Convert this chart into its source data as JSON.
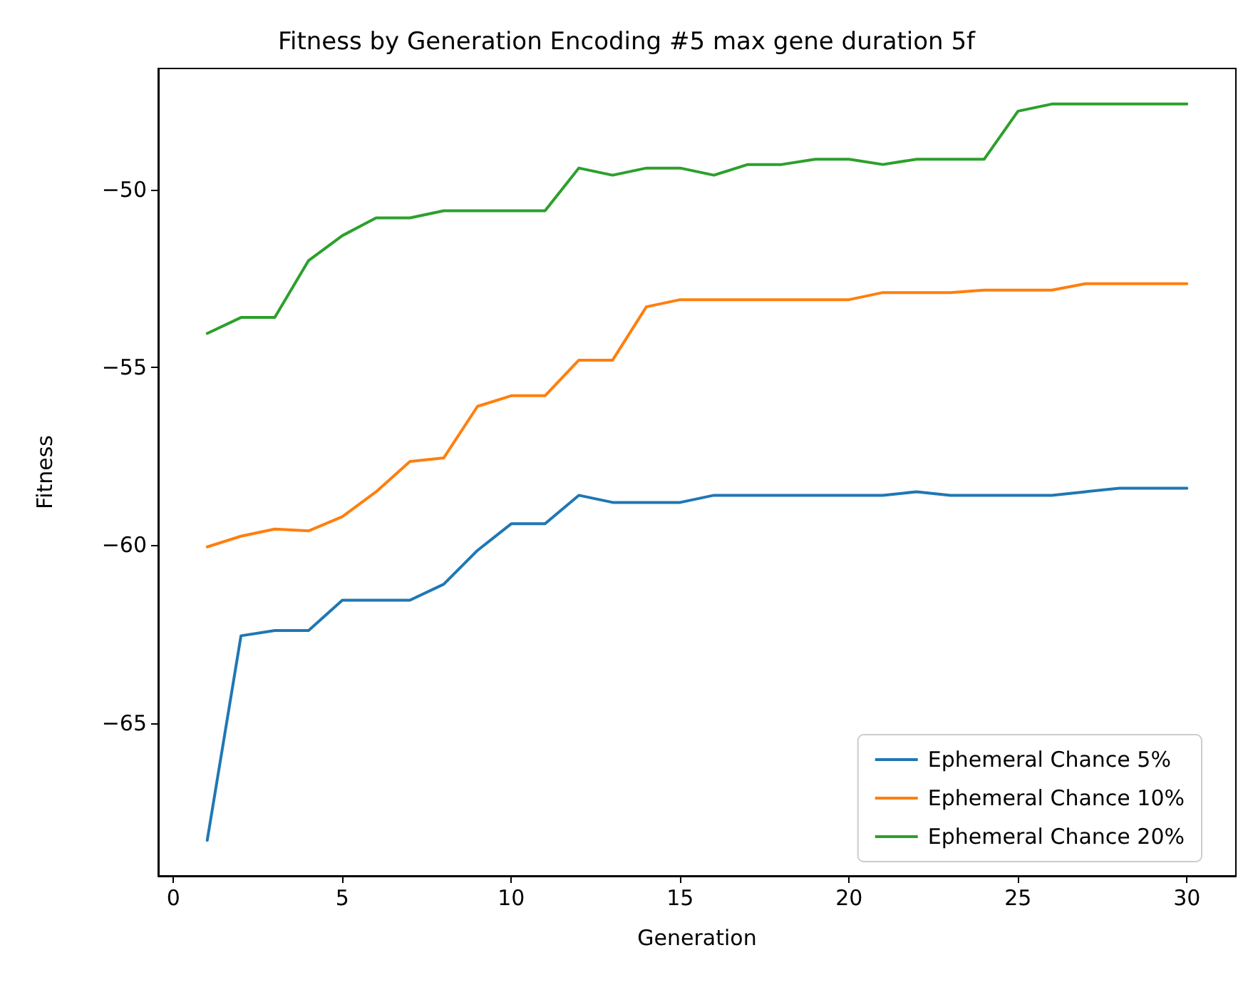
{
  "chart_data": {
    "type": "line",
    "title": "Fitness by Generation Encoding #5 max gene duration 5f",
    "xlabel": "Generation",
    "ylabel": "Fitness",
    "x": [
      1,
      2,
      3,
      4,
      5,
      6,
      7,
      8,
      9,
      10,
      11,
      12,
      13,
      14,
      15,
      16,
      17,
      18,
      19,
      20,
      21,
      22,
      23,
      24,
      25,
      26,
      27,
      28,
      29,
      30
    ],
    "xlim": [
      -0.45,
      31.45
    ],
    "xticks": [
      0,
      5,
      10,
      15,
      20,
      25,
      30
    ],
    "ylim": [
      -69.3,
      -46.6
    ],
    "yticks": [
      -65,
      -60,
      -55,
      -50
    ],
    "grid": false,
    "legend": "bottom right",
    "marker": "none",
    "line_style": "solid",
    "series": [
      {
        "name": "Ephemeral Chance 5%",
        "color": "#1f77b4",
        "values": [
          -68.3,
          -62.55,
          -62.4,
          -62.4,
          -61.55,
          -61.55,
          -61.55,
          -61.1,
          -60.15,
          -59.4,
          -59.4,
          -58.6,
          -58.8,
          -58.8,
          -58.8,
          -58.6,
          -58.6,
          -58.6,
          -58.6,
          -58.6,
          -58.6,
          -58.5,
          -58.6,
          -58.6,
          -58.6,
          -58.6,
          -58.5,
          -58.4,
          -58.4,
          -58.4
        ]
      },
      {
        "name": "Ephemeral Chance 10%",
        "color": "#ff7f0e",
        "values": [
          -60.05,
          -59.75,
          -59.55,
          -59.6,
          -59.2,
          -58.5,
          -57.65,
          -57.55,
          -56.1,
          -55.8,
          -55.8,
          -54.8,
          -54.8,
          -53.3,
          -53.1,
          -53.1,
          -53.1,
          -53.1,
          -53.1,
          -53.1,
          -52.9,
          -52.9,
          -52.9,
          -52.83,
          -52.83,
          -52.83,
          -52.65,
          -52.65,
          -52.65,
          -52.65
        ]
      },
      {
        "name": "Ephemeral Chance 20%",
        "color": "#2ca02c",
        "values": [
          -54.05,
          -53.6,
          -53.6,
          -52.0,
          -51.3,
          -50.8,
          -50.8,
          -50.6,
          -50.6,
          -50.6,
          -50.6,
          -49.4,
          -49.6,
          -49.4,
          -49.4,
          -49.6,
          -49.3,
          -49.3,
          -49.15,
          -49.15,
          -49.3,
          -49.15,
          -49.15,
          -49.15,
          -47.8,
          -47.6,
          -47.6,
          -47.6,
          -47.6,
          -47.6
        ]
      }
    ]
  }
}
